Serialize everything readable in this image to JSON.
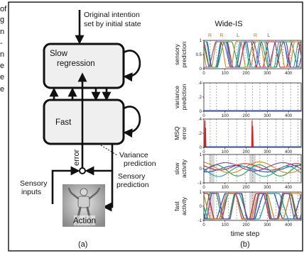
{
  "caption_fragments": [
    "of",
    "g",
    "n",
    "-",
    "n",
    "e",
    "e",
    "e"
  ],
  "diagram": {
    "top_label_line1": "Original intention",
    "top_label_line2": "set by initial state",
    "slow_label_line1": "Slow",
    "slow_label_line2": "regression",
    "fast_label": "Fast",
    "error_label": "error",
    "variance_label_line1": "Variance",
    "variance_label_line2": "prediction",
    "sensory_inputs_line1": "Sensory",
    "sensory_inputs_line2": "inputs",
    "sensory_prediction_line1": "Sensory",
    "sensory_prediction_line2": "prediction",
    "action_label": "Action",
    "panel_label": "(a)"
  },
  "plots": {
    "title": "Wide-IS",
    "panel_label": "(b)",
    "xlabel": "time step",
    "xticks": [
      "0",
      "100",
      "200",
      "300",
      "400"
    ],
    "markers": [
      {
        "text": "R",
        "color": "#e0701a"
      },
      {
        "text": "R",
        "color": "#e0701a"
      },
      {
        "text": "L",
        "color": "#2a8a2a"
      },
      {
        "text": "R",
        "color": "#e0701a"
      },
      {
        "text": "L",
        "color": "#2a8a2a"
      }
    ],
    "rows": [
      {
        "ylabel_line1": "sensory",
        "ylabel_line2": "prediction",
        "yticks": [
          "1",
          "0.5",
          "0"
        ]
      },
      {
        "ylabel_line1": "variance",
        "ylabel_line2": "prediction",
        "yticks": [
          ".4",
          ".2",
          "0"
        ]
      },
      {
        "ylabel_line1": "MSQ",
        "ylabel_line2": "error",
        "yticks": [
          ".4",
          ".2",
          "0"
        ]
      },
      {
        "ylabel_line1": "slow",
        "ylabel_line2": "activity",
        "yticks": [
          "1",
          "0",
          "-1"
        ]
      },
      {
        "ylabel_line1": "fast",
        "ylabel_line2": "activity",
        "yticks": [
          "1",
          "0",
          "-1"
        ]
      }
    ]
  },
  "colors": {
    "series": [
      "#2050c8",
      "#d02020",
      "#20a0a0",
      "#20a040",
      "#e08020",
      "#8040b0",
      "#50c0e0"
    ]
  }
}
